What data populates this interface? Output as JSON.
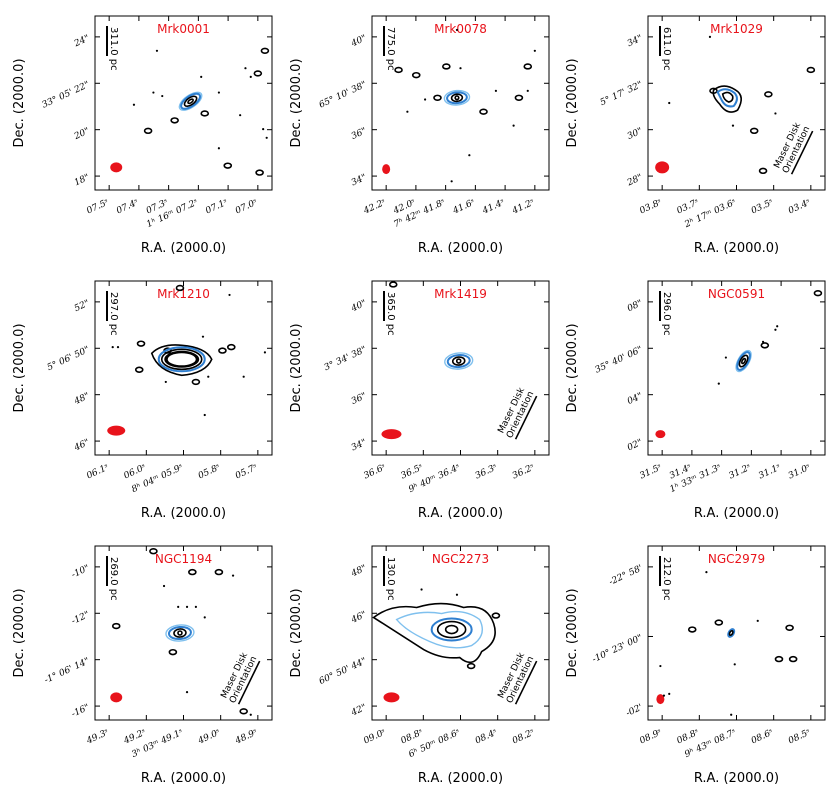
{
  "figure": {
    "panel_order": [
      "Mrk0001",
      "Mrk0078",
      "Mrk1029",
      "Mrk1210",
      "Mrk1419",
      "NGC0591",
      "NGC1194",
      "NGC2273",
      "NGC2979"
    ]
  },
  "chart_data": [
    {
      "type": "contour",
      "title": "Mrk0001",
      "xlabel": "R.A. (2000.0)",
      "ylabel": "Dec. (2000.0)",
      "scale_bar": "311.0 pc",
      "x_ticks": [
        "07.5s",
        "07.4s",
        "07.3s",
        "1h 16m 07.2s",
        "07.1s",
        "07.0s"
      ],
      "y_ticks": [
        "24\"",
        "33° 05' 22\"",
        "20\"",
        "18\""
      ],
      "maser_orientation_shown": false
    },
    {
      "type": "contour",
      "title": "Mrk0078",
      "xlabel": "R.A. (2000.0)",
      "ylabel": "Dec. (2000.0)",
      "scale_bar": "775.0 pc",
      "x_ticks": [
        "42.2s",
        "42.0s",
        "7h 42m 41.8s",
        "41.6s",
        "41.4s",
        "41.2s"
      ],
      "y_ticks": [
        "40\"",
        "65° 10' 38\"",
        "36\"",
        "34\""
      ],
      "maser_orientation_shown": false
    },
    {
      "type": "contour",
      "title": "Mrk1029",
      "xlabel": "R.A. (2000.0)",
      "ylabel": "Dec. (2000.0)",
      "scale_bar": "611.0 pc",
      "x_ticks": [
        "03.8s",
        "03.7s",
        "2h 17m 03.6s",
        "03.5s",
        "03.4s"
      ],
      "y_ticks": [
        "34\"",
        "5° 17' 32\"",
        "30\"",
        "28\""
      ],
      "maser_orientation_shown": true,
      "maser_label": "Maser Disk Orientation"
    },
    {
      "type": "contour",
      "title": "Mrk1210",
      "xlabel": "R.A. (2000.0)",
      "ylabel": "Dec. (2000.0)",
      "scale_bar": "297.0 pc",
      "x_ticks": [
        "06.1s",
        "06.0s",
        "8h 04m 05.9s",
        "05.8s",
        "05.7s"
      ],
      "y_ticks": [
        "52\"",
        "5° 06' 50\"",
        "48\"",
        "46\""
      ],
      "maser_orientation_shown": false
    },
    {
      "type": "contour",
      "title": "Mrk1419",
      "xlabel": "R.A. (2000.0)",
      "ylabel": "Dec. (2000.0)",
      "scale_bar": "365.0 pc",
      "x_ticks": [
        "36.6s",
        "36.5s",
        "9h 40m 36.4s",
        "36.3s",
        "36.2s"
      ],
      "y_ticks": [
        "40\"",
        "3° 34' 38\"",
        "36\"",
        "34\""
      ],
      "maser_orientation_shown": true,
      "maser_label": "Maser Disk Orientation"
    },
    {
      "type": "contour",
      "title": "NGC0591",
      "xlabel": "R.A. (2000.0)",
      "ylabel": "Dec. (2000.0)",
      "scale_bar": "296.0 pc",
      "x_ticks": [
        "31.5s",
        "31.4s",
        "1h 33m 31.3s",
        "31.2s",
        "31.1s",
        "31.0s"
      ],
      "y_ticks": [
        "08\"",
        "35° 40' 06\"",
        "04\"",
        "02\""
      ],
      "maser_orientation_shown": false
    },
    {
      "type": "contour",
      "title": "NGC1194",
      "xlabel": "R.A. (2000.0)",
      "ylabel": "Dec. (2000.0)",
      "scale_bar": "269.0 pc",
      "x_ticks": [
        "49.3s",
        "49.2s",
        "3h 03m 49.1s",
        "49.0s",
        "48.9s"
      ],
      "y_ticks": [
        "-10\"",
        "-12\"",
        "-1° 06' 14\"",
        "-16\""
      ],
      "maser_orientation_shown": true,
      "maser_label": "Maser Disk Orientation"
    },
    {
      "type": "contour",
      "title": "NGC2273",
      "xlabel": "R.A. (2000.0)",
      "ylabel": "Dec. (2000.0)",
      "scale_bar": "130.0 pc",
      "x_ticks": [
        "09.0s",
        "08.8s",
        "6h 50m 08.6s",
        "08.4s",
        "08.2s"
      ],
      "y_ticks": [
        "48\"",
        "46\"",
        "60° 50' 44\"",
        "42\""
      ],
      "maser_orientation_shown": true,
      "maser_label": "Maser Disk Orientation"
    },
    {
      "type": "contour",
      "title": "NGC2979",
      "xlabel": "R.A. (2000.0)",
      "ylabel": "Dec. (2000.0)",
      "scale_bar": "212.0 pc",
      "x_ticks": [
        "08.9s",
        "08.8s",
        "9h 43m 08.7s",
        "08.6s",
        "08.5s"
      ],
      "y_ticks": [
        "-22° 58'",
        "-10° 23' 00\"",
        "-02'"
      ],
      "maser_orientation_shown": false
    }
  ]
}
